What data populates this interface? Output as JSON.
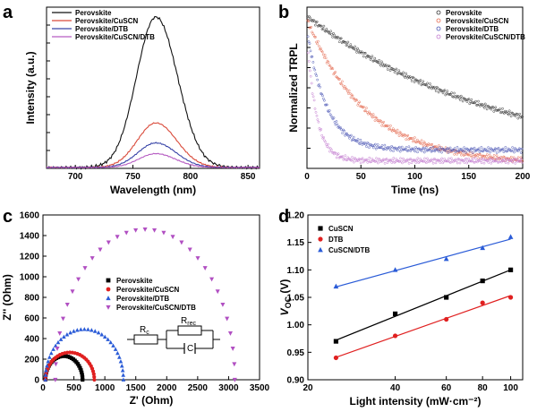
{
  "figure": {
    "panels": [
      {
        "id": "a",
        "letter": "a"
      },
      {
        "id": "b",
        "letter": "b"
      },
      {
        "id": "c",
        "letter": "c"
      },
      {
        "id": "d",
        "letter": "d"
      }
    ]
  },
  "chart_data": [
    {
      "id": "a",
      "type": "line",
      "title": "",
      "xlabel": "Wavelength (nm)",
      "ylabel": "Intensity (a.u.)",
      "xlim": [
        675,
        860
      ],
      "ylim": [
        0,
        1.05
      ],
      "xticks": [
        700,
        750,
        800,
        850
      ],
      "xtick_labels": [
        "700",
        "750",
        "800",
        "850"
      ],
      "yticks_labels_shown": false,
      "legend": {
        "placement": "top-left"
      },
      "series": [
        {
          "name": "Perovskite",
          "color": "#111111",
          "peak_x": 770,
          "peak_y": 0.98,
          "fwhm_l": 27,
          "fwhm_r": 30
        },
        {
          "name": "Perovskite/CuSCN",
          "color": "#d94a3a",
          "peak_x": 770,
          "peak_y": 0.29,
          "fwhm_l": 26,
          "fwhm_r": 29
        },
        {
          "name": "Perovskite/DTB",
          "color": "#3a46a8",
          "peak_x": 770,
          "peak_y": 0.16,
          "fwhm_l": 25,
          "fwhm_r": 28
        },
        {
          "name": "Perovskite/CuSCN/DTB",
          "color": "#b65cc2",
          "peak_x": 770,
          "peak_y": 0.09,
          "fwhm_l": 24,
          "fwhm_r": 27
        }
      ]
    },
    {
      "id": "b",
      "type": "scatter",
      "title": "",
      "xlabel": "Time (ns)",
      "ylabel": "Normalized TRPL",
      "xlim": [
        0,
        200
      ],
      "ylim": [
        0,
        1.05
      ],
      "xticks": [
        0,
        50,
        100,
        150,
        200
      ],
      "xtick_labels": [
        "0",
        "50",
        "100",
        "150",
        "200"
      ],
      "yticks_labels_shown": false,
      "legend": {
        "placement": "top-right"
      },
      "series": [
        {
          "name": "Perovskite",
          "color": "#333333",
          "y0": 0.99,
          "tau": 185,
          "floor": 0.0
        },
        {
          "name": "Perovskite/CuSCN",
          "color": "#e56a50",
          "y0": 0.97,
          "tau": 55,
          "floor": 0.03
        },
        {
          "name": "Perovskite/DTB",
          "color": "#4a55b5",
          "y0": 0.9,
          "tau": 18,
          "floor": 0.12
        },
        {
          "name": "Perovskite/CuSCN/DTB",
          "color": "#c37bd0",
          "y0": 0.85,
          "tau": 9,
          "floor": 0.05
        }
      ]
    },
    {
      "id": "c",
      "type": "scatter",
      "title": "",
      "xlabel": "Z' (Ohm)",
      "ylabel": "Z'' (Ohm)",
      "xlim": [
        0,
        3500
      ],
      "ylim": [
        0,
        1600
      ],
      "xticks": [
        0,
        500,
        1000,
        1500,
        2000,
        2500,
        3000,
        3500
      ],
      "xtick_labels": [
        "0",
        "500",
        "1000",
        "1500",
        "2000",
        "2500",
        "3000",
        "3500"
      ],
      "yticks": [
        0,
        200,
        400,
        600,
        800,
        1000,
        1200,
        1400,
        1600
      ],
      "ytick_labels": [
        "0",
        "200",
        "400",
        "600",
        "800",
        "1000",
        "1200",
        "1400",
        "1600"
      ],
      "legend": {
        "placement": "center-left"
      },
      "series": [
        {
          "name": "Perovskite",
          "color": "#000000",
          "marker": "square",
          "x_start": 40,
          "x_end": 640,
          "peak": 230
        },
        {
          "name": "Perovskite/CuSCN",
          "color": "#e02020",
          "marker": "circle",
          "x_start": 40,
          "x_end": 830,
          "peak": 265
        },
        {
          "name": "Perovskite/DTB",
          "color": "#2a5bd7",
          "marker": "triangle-up",
          "x_start": 40,
          "x_end": 1300,
          "peak": 490
        },
        {
          "name": "Perovskite/CuSCN/DTB",
          "color": "#b14fc2",
          "marker": "triangle-down",
          "x_start": 200,
          "x_end": 3100,
          "peak": 1460
        }
      ],
      "circuit": {
        "labels": [
          "R",
          "c",
          "R",
          "rec",
          "C"
        ]
      }
    },
    {
      "id": "d",
      "type": "scatter",
      "title": "",
      "xlabel": "Light intensity (mW·cm⁻²)",
      "ylabel": "V_OC (V)",
      "ylabel_main": "V",
      "ylabel_sub": "OC",
      "ylabel_unit": " (V)",
      "x_scale": "log",
      "xlim": [
        20,
        110
      ],
      "ylim": [
        0.9,
        1.2
      ],
      "xticks": [
        20,
        40,
        60,
        80,
        100
      ],
      "xtick_labels": [
        "20",
        "40",
        "60",
        "80",
        "100"
      ],
      "yticks": [
        0.9,
        0.95,
        1.0,
        1.05,
        1.1,
        1.15,
        1.2
      ],
      "ytick_labels": [
        "0.90",
        "0.95",
        "1.00",
        "1.05",
        "1.10",
        "1.15",
        "1.20"
      ],
      "legend": {
        "placement": "top-left"
      },
      "series": [
        {
          "name": "CuSCN",
          "color": "#000000",
          "marker": "square",
          "x": [
            25,
            40,
            60,
            80,
            100
          ],
          "y": [
            0.97,
            1.02,
            1.05,
            1.08,
            1.1
          ]
        },
        {
          "name": "DTB",
          "color": "#e02020",
          "marker": "circle",
          "x": [
            25,
            40,
            60,
            80,
            100
          ],
          "y": [
            0.94,
            0.98,
            1.01,
            1.04,
            1.05
          ]
        },
        {
          "name": "CuSCN/DTB",
          "color": "#2a5bd7",
          "marker": "triangle-up",
          "x": [
            25,
            40,
            60,
            80,
            100
          ],
          "y": [
            1.07,
            1.1,
            1.12,
            1.14,
            1.16
          ]
        }
      ]
    }
  ]
}
